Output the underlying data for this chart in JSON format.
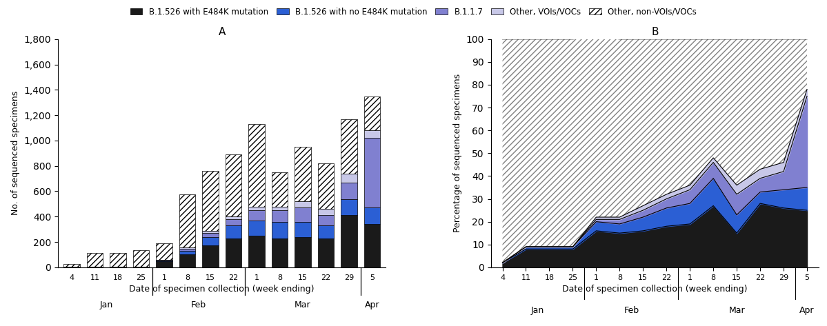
{
  "weeks": [
    "4",
    "11",
    "18",
    "25",
    "1",
    "8",
    "15",
    "22",
    "1",
    "8",
    "15",
    "22",
    "29",
    "5"
  ],
  "months": [
    {
      "label": "Jan",
      "x": 1.5
    },
    {
      "label": "Feb",
      "x": 5.5
    },
    {
      "label": "Mar",
      "x": 10.0
    },
    {
      "label": "Apr",
      "x": 13.0
    }
  ],
  "dividers": [
    3.5,
    7.5,
    12.5
  ],
  "bar_e484k": [
    5,
    5,
    5,
    5,
    50,
    100,
    175,
    230,
    250,
    230,
    240,
    230,
    410,
    340
  ],
  "bar_no_e484k": [
    0,
    0,
    0,
    0,
    5,
    30,
    65,
    100,
    120,
    130,
    120,
    100,
    130,
    130
  ],
  "bar_b117": [
    0,
    0,
    0,
    0,
    2,
    15,
    30,
    50,
    80,
    90,
    110,
    80,
    130,
    550
  ],
  "bar_voi": [
    0,
    0,
    0,
    0,
    3,
    10,
    20,
    20,
    30,
    30,
    50,
    50,
    70,
    60
  ],
  "bar_nonvoi": [
    20,
    110,
    110,
    130,
    130,
    420,
    470,
    490,
    650,
    270,
    430,
    360,
    430,
    270
  ],
  "pct_e484k": [
    2,
    8,
    8,
    8,
    16,
    15,
    16,
    18,
    19,
    27,
    15,
    28,
    26,
    25
  ],
  "pct_no_e484k": [
    0,
    1,
    1,
    1,
    4,
    4,
    6,
    8,
    9,
    12,
    8,
    5,
    8,
    10
  ],
  "pct_b117": [
    0,
    0,
    0,
    0,
    1,
    2,
    3,
    4,
    6,
    7,
    9,
    6,
    8,
    40
  ],
  "pct_voi": [
    0,
    0,
    0,
    0,
    1,
    1,
    2,
    2,
    2,
    2,
    4,
    4,
    4,
    3
  ],
  "pct_nonvoi": [
    98,
    91,
    91,
    91,
    79,
    78,
    73,
    68,
    64,
    52,
    64,
    57,
    54,
    22
  ],
  "color_e484k": "#1a1a1a",
  "color_no_e484k": "#2b5fd4",
  "color_b117": "#8080d0",
  "color_voi": "#c8c8e8",
  "color_nonvoi": "white",
  "hatch_nonvoi": "////",
  "title_a": "A",
  "title_b": "B",
  "ylabel_a": "No. of sequenced specimens",
  "ylabel_b": "Percentage of sequenced specimens",
  "xlabel": "Date of specimen collection (week ending)",
  "ylim_a": [
    0,
    1800
  ],
  "ylim_b": [
    0,
    100
  ],
  "yticks_a": [
    0,
    200,
    400,
    600,
    800,
    1000,
    1200,
    1400,
    1600,
    1800
  ],
  "yticks_b": [
    0,
    10,
    20,
    30,
    40,
    50,
    60,
    70,
    80,
    90,
    100
  ],
  "legend_labels": [
    "B.1.526 with E484K mutation",
    "B.1.526 with no E484K mutation",
    "B.1.1.7",
    "Other, VOIs/VOCs",
    "Other, non-VOIs/VOCs"
  ],
  "legend_colors": [
    "#1a1a1a",
    "#2b5fd4",
    "#8080d0",
    "#c8c8e8",
    "white"
  ],
  "legend_hatches": [
    "",
    "",
    "",
    "",
    "////"
  ]
}
